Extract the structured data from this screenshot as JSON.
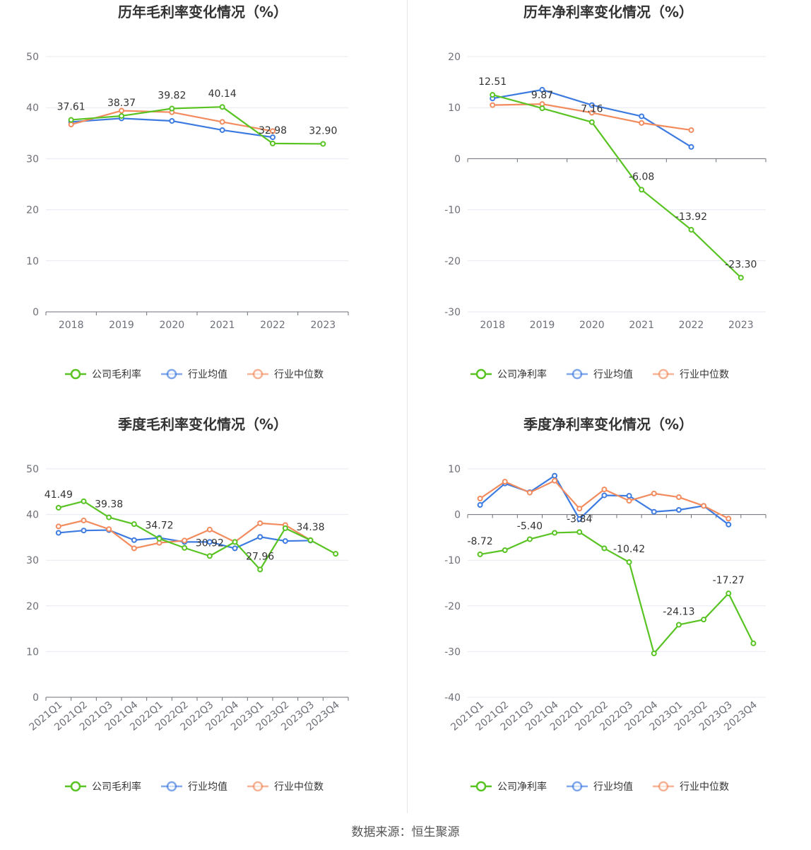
{
  "colors": {
    "company": "#58c322",
    "average": "#3d7be0",
    "median": "#f28b5e",
    "grid": "#e6e9f0",
    "axis": "#6e7079"
  },
  "source": "数据来源：恒生聚源",
  "chart_data": [
    {
      "type": "line",
      "title": "历年毛利率变化情况（%）",
      "categories": [
        "2018",
        "2019",
        "2020",
        "2021",
        "2022",
        "2023"
      ],
      "ylim": [
        0,
        50
      ],
      "yticks": [
        0,
        10,
        20,
        30,
        40,
        50
      ],
      "grid": true,
      "legend_position": "bottom",
      "series": [
        {
          "name": "公司毛利率",
          "color": "#58c322",
          "values": [
            37.61,
            38.37,
            39.82,
            40.14,
            32.98,
            32.9
          ]
        },
        {
          "name": "行业均值",
          "color": "#3d7be0",
          "values": [
            37.2,
            37.9,
            37.4,
            35.6,
            34.2,
            null
          ]
        },
        {
          "name": "行业中位数",
          "color": "#f28b5e",
          "values": [
            36.7,
            39.4,
            39.1,
            37.2,
            35.4,
            null
          ]
        }
      ],
      "labels": [
        {
          "i": 0,
          "text": "37.61"
        },
        {
          "i": 1,
          "text": "38.37"
        },
        {
          "i": 2,
          "text": "39.82"
        },
        {
          "i": 3,
          "text": "40.14"
        },
        {
          "i": 4,
          "text": "32.98"
        },
        {
          "i": 5,
          "text": "32.90"
        }
      ]
    },
    {
      "type": "line",
      "title": "历年净利率变化情况（%）",
      "categories": [
        "2018",
        "2019",
        "2020",
        "2021",
        "2022",
        "2023"
      ],
      "ylim": [
        -30,
        20
      ],
      "yticks": [
        -30,
        -20,
        -10,
        0,
        10,
        20
      ],
      "grid": true,
      "legend_position": "bottom",
      "series": [
        {
          "name": "公司净利率",
          "color": "#58c322",
          "values": [
            12.51,
            9.87,
            7.16,
            -6.08,
            -13.92,
            -23.3
          ]
        },
        {
          "name": "行业均值",
          "color": "#3d7be0",
          "values": [
            11.8,
            13.5,
            10.5,
            8.3,
            2.3,
            null
          ]
        },
        {
          "name": "行业中位数",
          "color": "#f28b5e",
          "values": [
            10.5,
            10.7,
            9.0,
            7.0,
            5.6,
            null
          ]
        }
      ],
      "labels": [
        {
          "i": 0,
          "text": "12.51"
        },
        {
          "i": 1,
          "text": "9.87"
        },
        {
          "i": 2,
          "text": "7.16"
        },
        {
          "i": 3,
          "text": "-6.08"
        },
        {
          "i": 4,
          "text": "-13.92"
        },
        {
          "i": 5,
          "text": "-23.30"
        }
      ]
    },
    {
      "type": "line",
      "title": "季度毛利率变化情况（%）",
      "categories": [
        "2021Q1",
        "2021Q2",
        "2021Q3",
        "2021Q4",
        "2022Q1",
        "2022Q2",
        "2022Q3",
        "2022Q4",
        "2023Q1",
        "2023Q2",
        "2023Q3",
        "2023Q4"
      ],
      "ylim": [
        0,
        50
      ],
      "yticks": [
        0,
        10,
        20,
        30,
        40,
        50
      ],
      "grid": true,
      "legend_position": "bottom",
      "series": [
        {
          "name": "公司毛利率",
          "color": "#58c322",
          "values": [
            41.49,
            42.9,
            39.38,
            37.9,
            34.72,
            32.7,
            30.92,
            34.0,
            27.96,
            37.0,
            34.38,
            31.4
          ]
        },
        {
          "name": "行业均值",
          "color": "#3d7be0",
          "values": [
            36.0,
            36.5,
            36.6,
            34.4,
            34.9,
            34.0,
            34.0,
            32.6,
            35.1,
            34.2,
            34.3,
            null
          ]
        },
        {
          "name": "行业中位数",
          "color": "#f28b5e",
          "values": [
            37.4,
            38.7,
            36.8,
            32.6,
            33.8,
            34.3,
            36.7,
            34.0,
            38.1,
            37.7,
            34.4,
            null
          ]
        }
      ],
      "labels": [
        {
          "i": 0,
          "text": "41.49"
        },
        {
          "i": 2,
          "text": "39.38"
        },
        {
          "i": 4,
          "text": "34.72"
        },
        {
          "i": 6,
          "text": "30.92"
        },
        {
          "i": 8,
          "text": "27.96"
        },
        {
          "i": 10,
          "text": "34.38"
        }
      ]
    },
    {
      "type": "line",
      "title": "季度净利率变化情况（%）",
      "categories": [
        "2021Q1",
        "2021Q2",
        "2021Q3",
        "2021Q4",
        "2022Q1",
        "2022Q2",
        "2022Q3",
        "2022Q4",
        "2023Q1",
        "2023Q2",
        "2023Q3",
        "2023Q4"
      ],
      "ylim": [
        -40,
        10
      ],
      "yticks": [
        -40,
        -30,
        -20,
        -10,
        0,
        10
      ],
      "grid": true,
      "legend_position": "bottom",
      "series": [
        {
          "name": "公司净利率",
          "color": "#58c322",
          "values": [
            -8.72,
            -7.8,
            -5.4,
            -4.0,
            -3.84,
            -7.4,
            -10.42,
            -30.4,
            -24.13,
            -23.0,
            -17.27,
            -28.2
          ]
        },
        {
          "name": "行业均值",
          "color": "#3d7be0",
          "values": [
            2.1,
            6.8,
            4.9,
            8.5,
            -1.0,
            4.2,
            4.1,
            0.6,
            1.0,
            1.9,
            -2.2,
            null
          ]
        },
        {
          "name": "行业中位数",
          "color": "#f28b5e",
          "values": [
            3.5,
            7.2,
            4.8,
            7.4,
            1.3,
            5.5,
            3.0,
            4.6,
            3.8,
            1.9,
            -0.9,
            null
          ]
        }
      ],
      "labels": [
        {
          "i": 0,
          "text": "-8.72"
        },
        {
          "i": 2,
          "text": "-5.40"
        },
        {
          "i": 4,
          "text": "-3.84"
        },
        {
          "i": 6,
          "text": "-10.42"
        },
        {
          "i": 8,
          "text": "-24.13"
        },
        {
          "i": 10,
          "text": "-17.27"
        }
      ]
    }
  ]
}
